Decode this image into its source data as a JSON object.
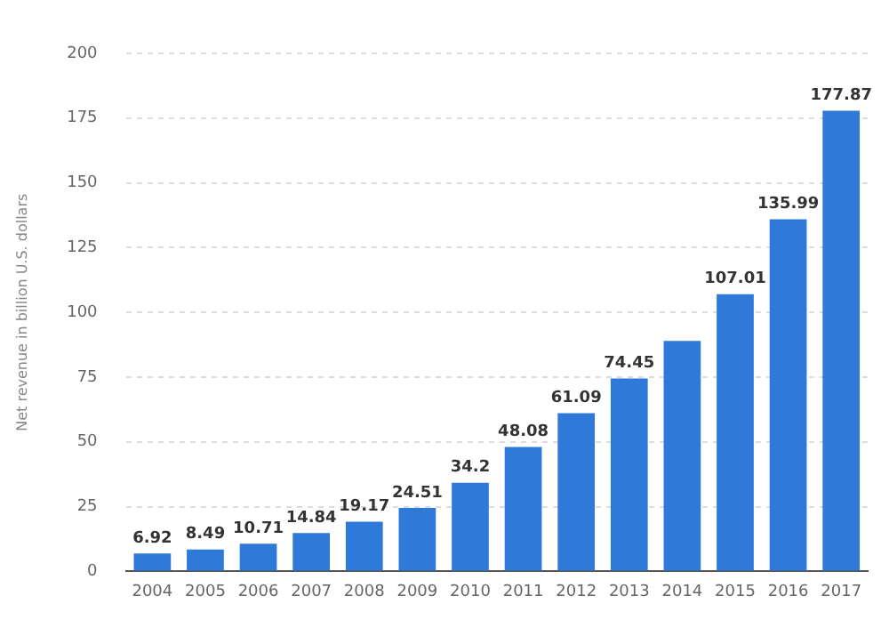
{
  "chart_data": {
    "type": "bar",
    "ylabel": "Net revenue in billion U.S. dollars",
    "categories": [
      "2004",
      "2005",
      "2006",
      "2007",
      "2008",
      "2009",
      "2010",
      "2011",
      "2012",
      "2013",
      "2014",
      "2015",
      "2016",
      "2017"
    ],
    "values": [
      6.92,
      8.49,
      10.71,
      14.84,
      19.17,
      24.51,
      34.2,
      48.08,
      61.09,
      74.45,
      89,
      107.01,
      135.99,
      177.87
    ],
    "value_labels": [
      "6.92",
      "8.49",
      "10.71",
      "14.84",
      "19.17",
      "24.51",
      "34.2",
      "48.08",
      "61.09",
      "74.45",
      null,
      "107.01",
      "135.99",
      "177.87"
    ],
    "color": "#2f7ad9",
    "ylim": [
      0,
      200
    ],
    "yticks": [
      0,
      25,
      50,
      75,
      100,
      125,
      150,
      175,
      200
    ],
    "grid": "y"
  }
}
